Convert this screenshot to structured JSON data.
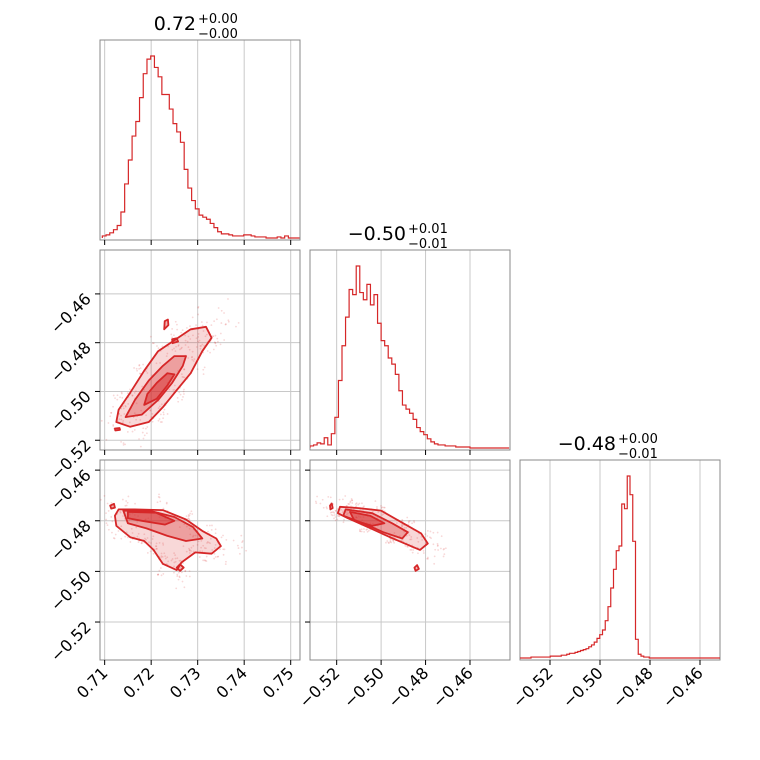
{
  "chart_data": {
    "type": "corner",
    "color": "#d62728",
    "grid": true,
    "parameters": [
      {
        "range": [
          0.709,
          0.752
        ],
        "ticks": [
          "0.71",
          "0.72",
          "0.73",
          "0.74",
          "0.75"
        ],
        "tick_values": [
          0.71,
          0.72,
          0.73,
          0.74,
          0.75
        ],
        "title": {
          "median": "0.72",
          "plus": "+0.00",
          "minus": "−0.00"
        },
        "histogram": {
          "bin_start": 0.7095,
          "bin_width": 0.0008,
          "counts": [
            2,
            3,
            5,
            8,
            12,
            25,
            52,
            75,
            98,
            112,
            135,
            158,
            172,
            175,
            164,
            155,
            138,
            138,
            124,
            110,
            102,
            92,
            66,
            48,
            36,
            28,
            22,
            20,
            18,
            14,
            10,
            6,
            4,
            4,
            3,
            2,
            2,
            2,
            3,
            3,
            2,
            1,
            1,
            1,
            0,
            0,
            0,
            1,
            0,
            2,
            0,
            0,
            0
          ]
        }
      },
      {
        "range": [
          -0.532,
          -0.442
        ],
        "ticks": [
          "−0.52",
          "−0.50",
          "−0.48",
          "−0.46"
        ],
        "tick_values": [
          -0.52,
          -0.5,
          -0.48,
          -0.46
        ],
        "title": {
          "median": "−0.50",
          "plus": "+0.01",
          "minus": "−0.01"
        },
        "histogram": {
          "bin_start": -0.532,
          "bin_width": 0.0016,
          "counts": [
            2,
            3,
            5,
            4,
            10,
            3,
            14,
            30,
            66,
            100,
            128,
            155,
            150,
            178,
            152,
            145,
            160,
            140,
            150,
            122,
            105,
            100,
            88,
            82,
            72,
            56,
            42,
            38,
            34,
            28,
            20,
            16,
            13,
            9,
            6,
            4,
            3,
            3,
            2,
            2,
            2,
            1,
            1,
            1,
            1,
            0,
            0,
            0,
            0,
            0,
            0,
            0,
            0,
            0,
            0,
            0
          ]
        }
      },
      {
        "range": [
          -0.532,
          -0.452
        ],
        "ticks": [
          "−0.52",
          "−0.50",
          "−0.48",
          "−0.46"
        ],
        "tick_values": [
          -0.52,
          -0.5,
          -0.48,
          -0.46
        ],
        "title": {
          "median": "−0.48",
          "plus": "+0.00",
          "minus": "−0.01"
        },
        "histogram": {
          "bin_start": -0.532,
          "bin_width": 0.0011,
          "counts": [
            0,
            0,
            0,
            0,
            1,
            1,
            1,
            1,
            1,
            1,
            1,
            2,
            2,
            2,
            2,
            3,
            3,
            4,
            5,
            5,
            6,
            7,
            8,
            9,
            10,
            12,
            14,
            17,
            21,
            25,
            30,
            40,
            55,
            75,
            95,
            115,
            120,
            165,
            160,
            195,
            175,
            125,
            20,
            4,
            2,
            1,
            1,
            0,
            0,
            0,
            0,
            0,
            0,
            0,
            0,
            0,
            0,
            0,
            0,
            0,
            0,
            0,
            0,
            0,
            0,
            0,
            0,
            0,
            0,
            0,
            0,
            0,
            0
          ]
        }
      }
    ],
    "pairs": [
      {
        "x_param": 0,
        "y_param": 1,
        "x_range": [
          0.709,
          0.752
        ],
        "y_range": [
          -0.524,
          -0.442
        ],
        "y_ticks": [
          "−0.52",
          "−0.50",
          "−0.48",
          "−0.46"
        ],
        "y_tick_values": [
          -0.52,
          -0.5,
          -0.48,
          -0.46
        ],
        "contours": [
          {
            "level": "outer",
            "points": [
              [
                0.7125,
                -0.5125
              ],
              [
                0.7155,
                -0.5145
              ],
              [
                0.7195,
                -0.5125
              ],
              [
                0.7225,
                -0.5065
              ],
              [
                0.7255,
                -0.4995
              ],
              [
                0.7285,
                -0.4925
              ],
              [
                0.731,
                -0.4835
              ],
              [
                0.733,
                -0.478
              ],
              [
                0.7318,
                -0.4735
              ],
              [
                0.7285,
                -0.4745
              ],
              [
                0.725,
                -0.479
              ],
              [
                0.7215,
                -0.4835
              ],
              [
                0.7185,
                -0.4915
              ],
              [
                0.7155,
                -0.5005
              ],
              [
                0.713,
                -0.5075
              ]
            ]
          },
          {
            "level": "middle",
            "points": [
              [
                0.7145,
                -0.5105
              ],
              [
                0.718,
                -0.5095
              ],
              [
                0.7215,
                -0.5035
              ],
              [
                0.7245,
                -0.4965
              ],
              [
                0.7268,
                -0.4895
              ],
              [
                0.7275,
                -0.4855
              ],
              [
                0.725,
                -0.4855
              ],
              [
                0.7225,
                -0.4895
              ],
              [
                0.7195,
                -0.4955
              ],
              [
                0.7165,
                -0.5035
              ]
            ]
          },
          {
            "level": "inner",
            "points": [
              [
                0.7185,
                -0.5055
              ],
              [
                0.7212,
                -0.503
              ],
              [
                0.7235,
                -0.4975
              ],
              [
                0.725,
                -0.493
              ],
              [
                0.7235,
                -0.4925
              ],
              [
                0.7212,
                -0.4965
              ],
              [
                0.7192,
                -0.501
              ]
            ]
          },
          {
            "level": "island",
            "points": [
              [
                0.7228,
                -0.4745
              ],
              [
                0.7237,
                -0.4728
              ],
              [
                0.7236,
                -0.4705
              ],
              [
                0.7229,
                -0.4712
              ]
            ]
          },
          {
            "level": "island",
            "points": [
              [
                0.7246,
                -0.4802
              ],
              [
                0.7258,
                -0.4795
              ],
              [
                0.7255,
                -0.4782
              ],
              [
                0.7245,
                -0.4786
              ]
            ]
          },
          {
            "level": "island",
            "points": [
              [
                0.7123,
                -0.516
              ],
              [
                0.7133,
                -0.5157
              ],
              [
                0.7132,
                -0.515
              ],
              [
                0.7122,
                -0.5152
              ]
            ]
          }
        ]
      },
      {
        "x_param": 0,
        "y_param": 2,
        "x_range": [
          0.709,
          0.752
        ],
        "y_range": [
          -0.535,
          -0.456
        ],
        "y_ticks": [
          "−0.52",
          "−0.50",
          "−0.48",
          "−0.46"
        ],
        "y_tick_values": [
          -0.52,
          -0.5,
          -0.48,
          -0.46
        ],
        "contours": [
          {
            "level": "outer",
            "points": [
              [
                0.713,
                -0.4755
              ],
              [
                0.7165,
                -0.4755
              ],
              [
                0.7225,
                -0.4758
              ],
              [
                0.7275,
                -0.4795
              ],
              [
                0.731,
                -0.484
              ],
              [
                0.734,
                -0.487
              ],
              [
                0.735,
                -0.49
              ],
              [
                0.733,
                -0.493
              ],
              [
                0.7295,
                -0.4925
              ],
              [
                0.7265,
                -0.4965
              ],
              [
                0.7255,
                -0.4995
              ],
              [
                0.7225,
                -0.497
              ],
              [
                0.7205,
                -0.4915
              ],
              [
                0.7185,
                -0.488
              ],
              [
                0.7155,
                -0.4865
              ],
              [
                0.7125,
                -0.482
              ],
              [
                0.7122,
                -0.478
              ]
            ]
          },
          {
            "level": "middle",
            "points": [
              [
                0.714,
                -0.476
              ],
              [
                0.72,
                -0.4762
              ],
              [
                0.725,
                -0.4785
              ],
              [
                0.729,
                -0.4825
              ],
              [
                0.731,
                -0.487
              ],
              [
                0.7275,
                -0.488
              ],
              [
                0.7235,
                -0.486
              ],
              [
                0.719,
                -0.483
              ],
              [
                0.715,
                -0.481
              ]
            ]
          },
          {
            "level": "inner",
            "points": [
              [
                0.715,
                -0.4765
              ],
              [
                0.721,
                -0.4768
              ],
              [
                0.725,
                -0.48
              ],
              [
                0.723,
                -0.4815
              ],
              [
                0.718,
                -0.48
              ],
              [
                0.715,
                -0.479
              ]
            ]
          },
          {
            "level": "island",
            "points": [
              [
                0.7255,
                -0.4985
              ],
              [
                0.7262,
                -0.4972
              ],
              [
                0.727,
                -0.4985
              ],
              [
                0.7262,
                -0.4998
              ]
            ]
          },
          {
            "level": "island",
            "points": [
              [
                0.7112,
                -0.474
              ],
              [
                0.712,
                -0.4733
              ],
              [
                0.7122,
                -0.4748
              ],
              [
                0.7114,
                -0.4752
              ]
            ]
          }
        ]
      },
      {
        "x_param": 1,
        "y_param": 2,
        "x_range": [
          -0.532,
          -0.442
        ],
        "y_range": [
          -0.535,
          -0.456
        ],
        "y_ticks": [],
        "y_tick_values": [
          -0.52,
          -0.5,
          -0.48,
          -0.46
        ],
        "contours": [
          {
            "level": "outer",
            "points": [
              [
                -0.5185,
                -0.4745
              ],
              [
                -0.51,
                -0.475
              ],
              [
                -0.5,
                -0.476
              ],
              [
                -0.49,
                -0.481
              ],
              [
                -0.482,
                -0.485
              ],
              [
                -0.479,
                -0.489
              ],
              [
                -0.4825,
                -0.4915
              ],
              [
                -0.488,
                -0.4895
              ],
              [
                -0.496,
                -0.4865
              ],
              [
                -0.506,
                -0.4825
              ],
              [
                -0.515,
                -0.479
              ],
              [
                -0.5195,
                -0.477
              ]
            ]
          },
          {
            "level": "middle",
            "points": [
              [
                -0.516,
                -0.4755
              ],
              [
                -0.504,
                -0.477
              ],
              [
                -0.495,
                -0.481
              ],
              [
                -0.488,
                -0.4845
              ],
              [
                -0.4905,
                -0.487
              ],
              [
                -0.499,
                -0.4845
              ],
              [
                -0.508,
                -0.481
              ],
              [
                -0.517,
                -0.478
              ]
            ]
          },
          {
            "level": "inner",
            "points": [
              [
                -0.514,
                -0.4765
              ],
              [
                -0.505,
                -0.478
              ],
              [
                -0.4985,
                -0.481
              ],
              [
                -0.504,
                -0.482
              ],
              [
                -0.512,
                -0.48
              ]
            ]
          },
          {
            "level": "island",
            "points": [
              [
                -0.485,
                -0.4985
              ],
              [
                -0.4838,
                -0.4975
              ],
              [
                -0.483,
                -0.499
              ],
              [
                -0.4845,
                -0.4998
              ]
            ]
          },
          {
            "level": "island",
            "points": [
              [
                -0.523,
                -0.474
              ],
              [
                -0.5222,
                -0.4732
              ],
              [
                -0.5218,
                -0.475
              ],
              [
                -0.5228,
                -0.4755
              ]
            ]
          }
        ]
      }
    ]
  }
}
